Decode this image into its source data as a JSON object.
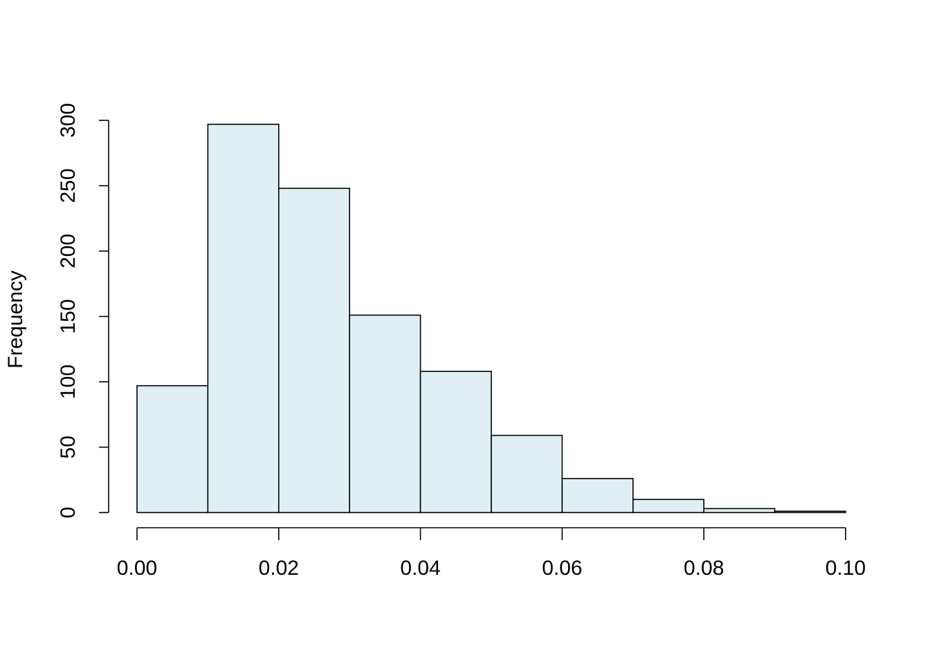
{
  "chart_data": {
    "type": "histogram",
    "y_label": "Frequency",
    "bins": [
      0,
      0.01,
      0.02,
      0.03,
      0.04,
      0.05,
      0.06,
      0.07,
      0.08,
      0.09,
      0.1
    ],
    "counts": [
      97,
      297,
      248,
      151,
      108,
      59,
      26,
      10,
      3,
      1
    ],
    "color": "#e0eff3",
    "xlim": [
      0,
      0.1
    ],
    "xticks": [
      {
        "value": 0,
        "label": "0.00"
      },
      {
        "value": 0.02,
        "label": "0.02"
      },
      {
        "value": 0.04,
        "label": "0.04"
      },
      {
        "value": 0.06,
        "label": "0.06"
      },
      {
        "value": 0.08,
        "label": "0.08"
      },
      {
        "value": 0.1,
        "label": "0.10"
      }
    ],
    "ylim": [
      0,
      300
    ],
    "yticks": [
      0,
      50,
      100,
      150,
      200,
      250,
      300
    ]
  }
}
